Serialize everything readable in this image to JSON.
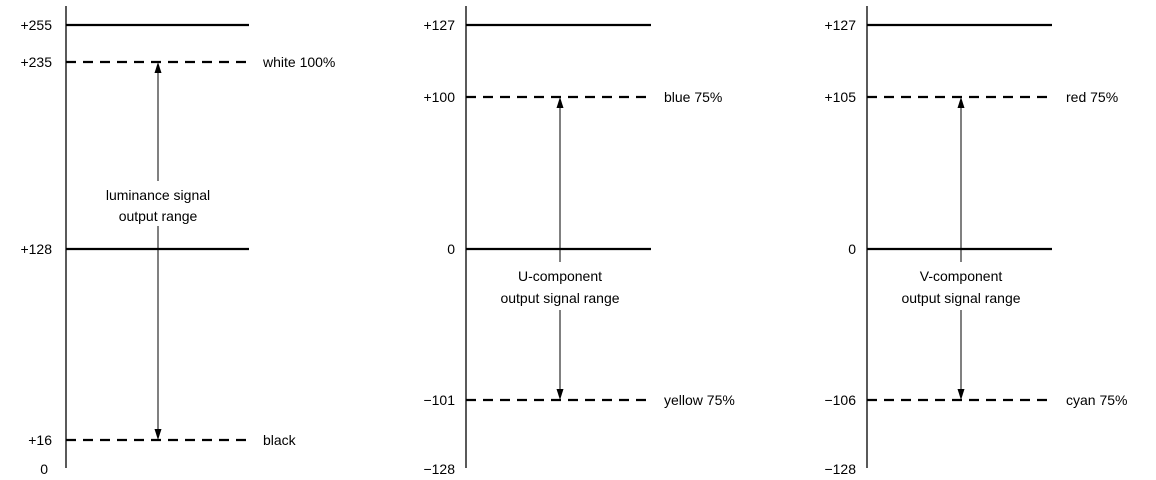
{
  "panels": [
    {
      "id": "luminance",
      "axis_labels": [
        {
          "text": "+255",
          "value": 255
        },
        {
          "text": "+235",
          "value": 235
        },
        {
          "text": "+128",
          "value": 128
        },
        {
          "text": "+16",
          "value": 16
        },
        {
          "text": "0",
          "value": 0
        }
      ],
      "solid_levels": [
        255,
        128
      ],
      "dashed_levels": [
        {
          "value": 235,
          "label": "white 100%"
        },
        {
          "value": 16,
          "label": "black"
        }
      ],
      "range_label": [
        "luminance signal",
        "output range"
      ],
      "range": [
        16,
        235
      ]
    },
    {
      "id": "u-component",
      "axis_labels": [
        {
          "text": "+127",
          "value": 127
        },
        {
          "text": "+100",
          "value": 100
        },
        {
          "text": "0",
          "value": 0
        },
        {
          "text": "−101",
          "value": -101
        },
        {
          "text": "−128",
          "value": -128
        }
      ],
      "solid_levels": [
        127,
        0
      ],
      "dashed_levels": [
        {
          "value": 100,
          "label": "blue 75%"
        },
        {
          "value": -101,
          "label": "yellow 75%"
        }
      ],
      "range_label": [
        "U-component",
        "output signal range"
      ],
      "range": [
        -101,
        100
      ]
    },
    {
      "id": "v-component",
      "axis_labels": [
        {
          "text": "+127",
          "value": 127
        },
        {
          "text": "+105",
          "value": 105
        },
        {
          "text": "0",
          "value": 0
        },
        {
          "text": "−106",
          "value": -106
        },
        {
          "text": "−128",
          "value": -128
        }
      ],
      "solid_levels": [
        127,
        0
      ],
      "dashed_levels": [
        {
          "value": 105,
          "label": "red 75%"
        },
        {
          "value": -106,
          "label": "cyan 75%"
        }
      ],
      "range_label": [
        "V-component",
        "output signal range"
      ],
      "range": [
        -106,
        105
      ]
    }
  ]
}
